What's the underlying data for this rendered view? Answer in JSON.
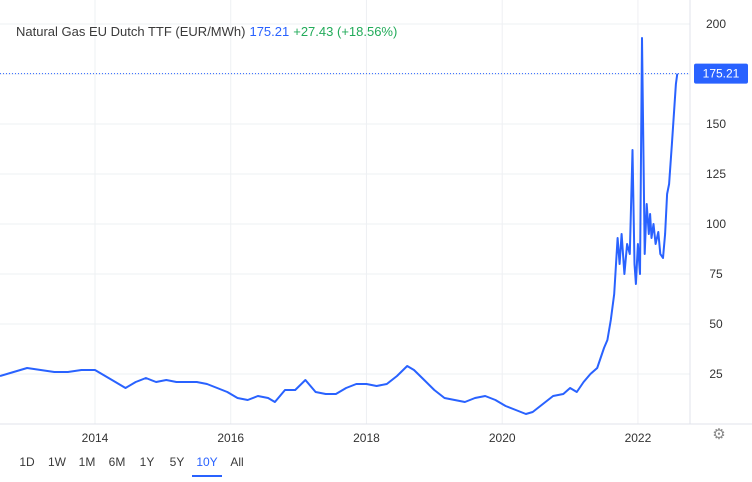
{
  "legend": {
    "name": "Natural Gas EU Dutch TTF (EUR/MWh)",
    "price": "175.21",
    "change": "+27.43",
    "change_pct": "(+18.56%)"
  },
  "ranges": [
    {
      "label": "1D",
      "active": false
    },
    {
      "label": "1W",
      "active": false
    },
    {
      "label": "1M",
      "active": false
    },
    {
      "label": "6M",
      "active": false
    },
    {
      "label": "1Y",
      "active": false
    },
    {
      "label": "5Y",
      "active": false
    },
    {
      "label": "10Y",
      "active": true
    },
    {
      "label": "All",
      "active": false
    }
  ],
  "settings_icon": "gear-icon",
  "colors": {
    "line": "#2962ff",
    "grid": "#eef0f3",
    "axis_text": "#333333",
    "badge": "#2962ff",
    "positive": "#22ab5a"
  },
  "chart_data": {
    "type": "line",
    "title": "Natural Gas EU Dutch TTF (EUR/MWh)",
    "xlabel": "",
    "ylabel": "",
    "xlim": [
      2012.6,
      2022.62
    ],
    "ylim": [
      0,
      212
    ],
    "y_ticks": [
      25,
      50,
      75,
      100,
      125,
      150,
      175,
      200
    ],
    "x_ticks": [
      {
        "label": "2014",
        "value": 2014
      },
      {
        "label": "2016",
        "value": 2016
      },
      {
        "label": "2018",
        "value": 2018
      },
      {
        "label": "2020",
        "value": 2020
      },
      {
        "label": "2022",
        "value": 2022
      }
    ],
    "last_value": 175.21,
    "last_label": "175.21",
    "grid": true,
    "series": [
      {
        "x": [
          2012.6,
          2012.8,
          2013.0,
          2013.2,
          2013.4,
          2013.6,
          2013.8,
          2014.0,
          2014.15,
          2014.3,
          2014.45,
          2014.6,
          2014.75,
          2014.9,
          2015.05,
          2015.2,
          2015.35,
          2015.5,
          2015.65,
          2015.8,
          2015.95,
          2016.1,
          2016.25,
          2016.4,
          2016.55,
          2016.65,
          2016.8,
          2016.95,
          2017.1,
          2017.25,
          2017.4,
          2017.55,
          2017.7,
          2017.85,
          2018.0,
          2018.15,
          2018.3,
          2018.45,
          2018.6,
          2018.7,
          2018.85,
          2019.0,
          2019.15,
          2019.3,
          2019.45,
          2019.6,
          2019.75,
          2019.9,
          2020.05,
          2020.2,
          2020.35,
          2020.45,
          2020.6,
          2020.75,
          2020.9,
          2021.0,
          2021.1,
          2021.2,
          2021.3,
          2021.4,
          2021.5,
          2021.55,
          2021.6,
          2021.65,
          2021.7,
          2021.73,
          2021.76,
          2021.8,
          2021.84,
          2021.88,
          2021.92,
          2021.95,
          2021.97,
          2022.0,
          2022.03,
          2022.06,
          2022.1,
          2022.13,
          2022.16,
          2022.18,
          2022.2,
          2022.23,
          2022.26,
          2022.3,
          2022.33,
          2022.37,
          2022.4,
          2022.43,
          2022.46,
          2022.5,
          2022.53,
          2022.56,
          2022.58
        ],
        "y": [
          24,
          26,
          28,
          27,
          26,
          26,
          27,
          27,
          24,
          21,
          18,
          21,
          23,
          21,
          22,
          21,
          21,
          21,
          20,
          18,
          16,
          13,
          12,
          14,
          13,
          11,
          17,
          17,
          22,
          16,
          15,
          15,
          18,
          20,
          20,
          19,
          20,
          24,
          29,
          27,
          22,
          17,
          13,
          12,
          11,
          13,
          14,
          12,
          9,
          7,
          5,
          6,
          10,
          14,
          15,
          18,
          16,
          21,
          25,
          28,
          38,
          42,
          52,
          65,
          93,
          80,
          95,
          75,
          90,
          85,
          137,
          80,
          70,
          90,
          75,
          193,
          85,
          110,
          95,
          105,
          93,
          100,
          90,
          96,
          85,
          83,
          95,
          115,
          120,
          140,
          155,
          170,
          175.21
        ]
      }
    ]
  }
}
